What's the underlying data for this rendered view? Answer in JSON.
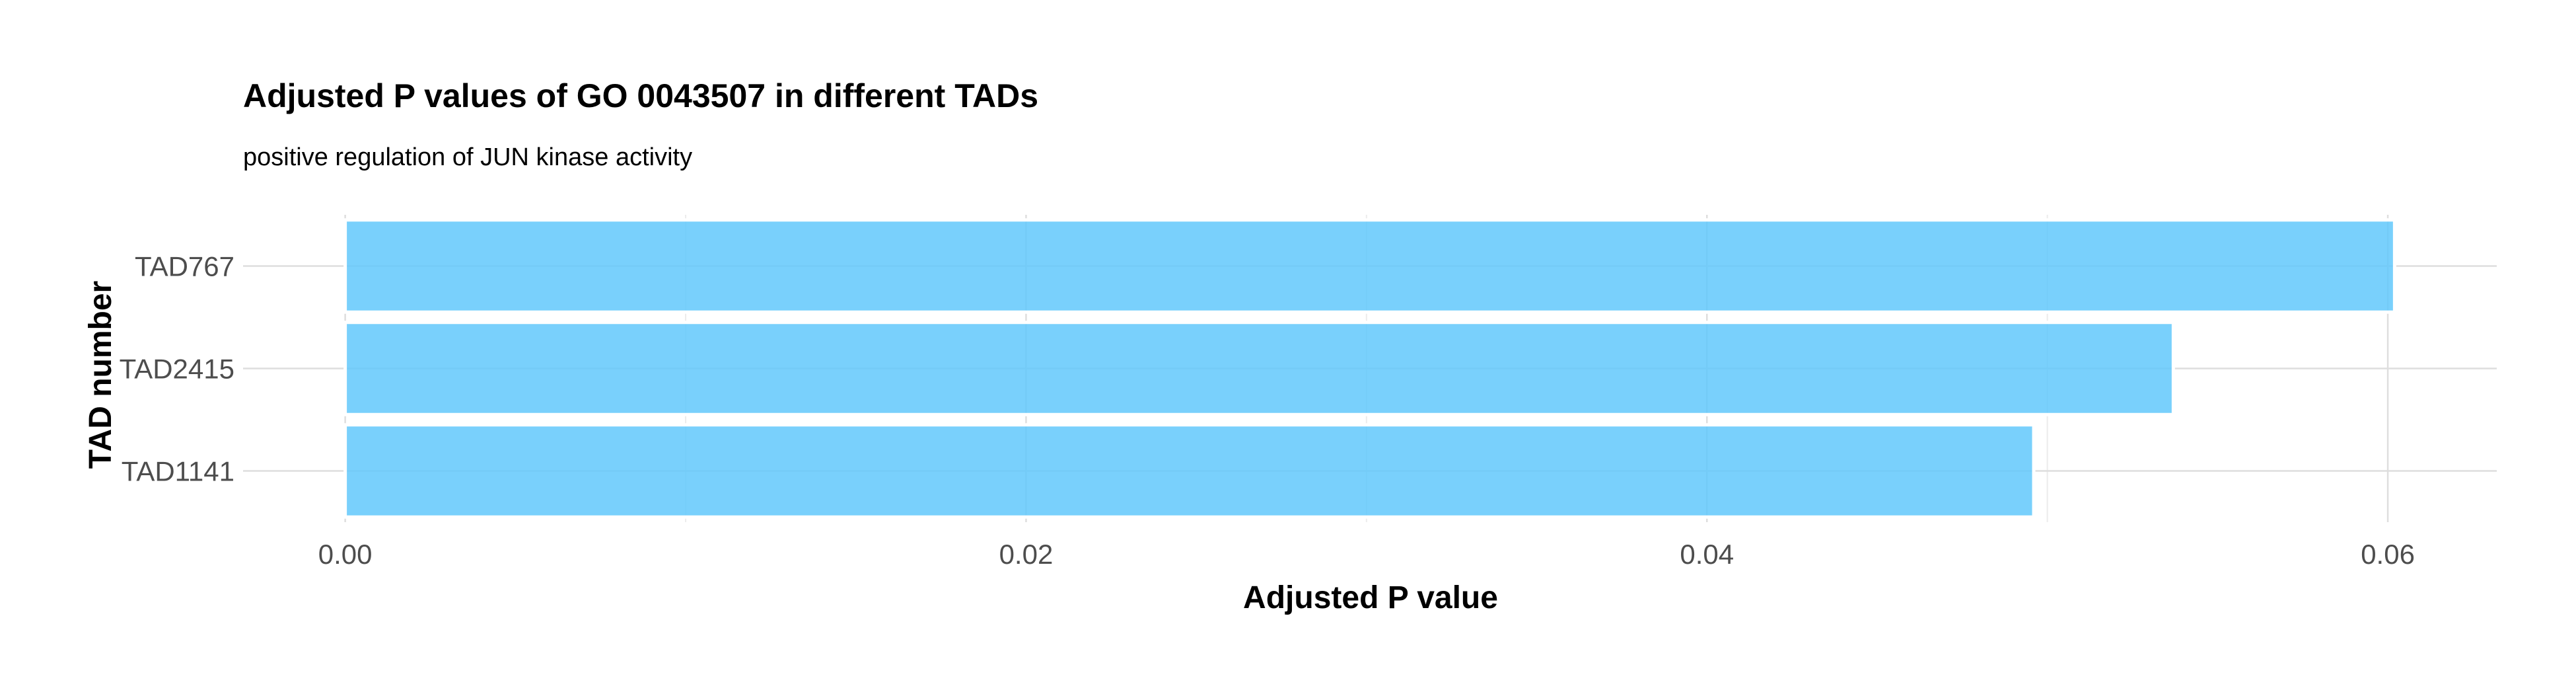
{
  "chart_data": {
    "type": "bar",
    "orientation": "horizontal",
    "title": "Adjusted P values of GO 0043507 in different TADs",
    "subtitle": "positive regulation of JUN kinase activity",
    "xlabel": "Adjusted P value",
    "ylabel": "TAD number",
    "categories": [
      "TAD767",
      "TAD2415",
      "TAD1141"
    ],
    "values": [
      0.0602,
      0.0537,
      0.0496
    ],
    "xlim": [
      -0.003,
      0.0632
    ],
    "xticks": [
      0.0,
      0.02,
      0.04,
      0.06
    ],
    "xtick_labels": [
      "0.00",
      "0.02",
      "0.04",
      "0.06"
    ],
    "grid": true,
    "bar_color": "#62C8FB",
    "bar_opacity": 0.85
  }
}
